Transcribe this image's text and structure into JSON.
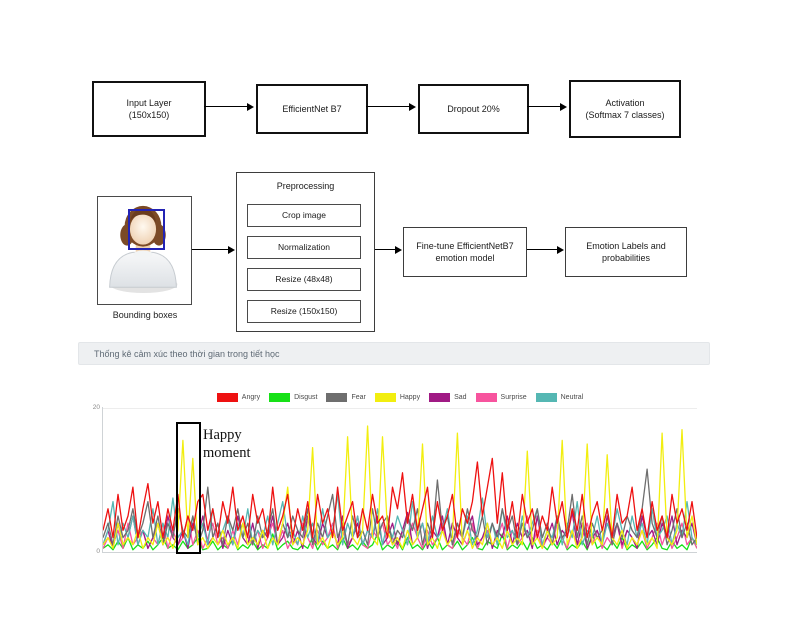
{
  "diagram": {
    "top_row": [
      {
        "lines": [
          "Input Layer",
          "(150x150)"
        ]
      },
      {
        "lines": [
          "EfficientNet B7",
          ""
        ]
      },
      {
        "lines": [
          "Dropout 20%",
          ""
        ]
      },
      {
        "lines": [
          "Activation",
          "(Softmax 7 classes)"
        ]
      }
    ],
    "bounding_box_label": "Bounding boxes",
    "preprocessing": {
      "title": "Preprocessing",
      "steps": [
        "Crop image",
        "Normalization",
        "Resize (48x48)",
        "Resize (150x150)"
      ]
    },
    "finetune_box": {
      "lines": [
        "Fine-tune EfficientNetB7",
        "emotion model"
      ]
    },
    "output_box": {
      "lines": [
        "Emotion Labels and",
        "probabilities"
      ]
    }
  },
  "section_header": {
    "label": "Thống kê cảm xúc theo thời gian trong tiết học",
    "background": "#eef0f2",
    "text_color": "#5f6a75"
  },
  "chart_data": {
    "type": "line",
    "title": "",
    "legend_position": "top",
    "xlabel": "",
    "ylabel": "",
    "ylim": [
      0,
      20
    ],
    "ytick_labels": [
      "20",
      "0"
    ],
    "grid": false,
    "annotation": {
      "label": "Happy moment"
    },
    "draw_order": [
      1,
      5,
      4,
      6,
      2,
      3,
      0
    ],
    "series": [
      {
        "name": "Angry",
        "color": "#ee1111",
        "values": [
          3,
          6,
          2,
          8,
          3,
          5,
          9,
          2,
          6,
          9.5,
          4,
          7,
          2,
          6,
          3,
          8,
          2,
          5,
          3,
          7,
          8,
          3,
          6,
          2,
          7,
          4,
          9,
          3,
          5,
          2,
          8,
          4,
          6,
          2,
          9,
          3,
          5,
          8,
          2,
          6,
          3,
          7,
          2,
          8,
          4,
          6,
          2,
          9,
          3,
          5,
          7,
          2,
          6,
          3,
          8,
          4,
          5,
          2,
          9,
          6,
          11,
          4,
          8,
          3,
          6,
          9,
          2,
          7,
          3,
          5,
          8,
          2,
          6,
          4,
          7,
          12.5,
          5,
          9,
          13,
          4,
          11,
          3,
          7,
          2,
          8,
          4,
          6,
          2,
          5,
          3,
          9,
          4,
          7,
          2,
          6,
          3,
          8,
          2,
          5,
          7,
          3,
          6,
          2,
          8,
          4,
          5,
          9,
          3,
          6,
          2,
          7,
          3,
          5,
          2,
          8,
          4,
          6,
          3,
          7,
          2
        ]
      },
      {
        "name": "Disgust",
        "color": "#17e117",
        "values": [
          0.5,
          1,
          0.3,
          1.5,
          0.5,
          2,
          0.3,
          1,
          0.5,
          1.5,
          0.3,
          1,
          2,
          0.5,
          1,
          0.3,
          1.5,
          0.5,
          1,
          2,
          0.3,
          0.5,
          1.5,
          0.3,
          1,
          0.5,
          2,
          0.3,
          1,
          0.5,
          1.5,
          0.3,
          1,
          0.5,
          2.5,
          0.3,
          1,
          1.5,
          0.5,
          0.3,
          1,
          0.5,
          2,
          0.3,
          1.5,
          0.5,
          1,
          0.3,
          2,
          0.5,
          1,
          0.3,
          1.5,
          0.5,
          1,
          2.5,
          0.3,
          1,
          0.5,
          1.5,
          0.3,
          2,
          0.5,
          1,
          0.3,
          1.5,
          0.5,
          2,
          0.3,
          1,
          0.5,
          1.5,
          0.3,
          1,
          2,
          0.5,
          0.3,
          1.5,
          1,
          0.5,
          2.5,
          0.3,
          1,
          0.5,
          1.5,
          0.3,
          2,
          0.5,
          1,
          0.3,
          1.5,
          0.5,
          2,
          0.3,
          1,
          0.5,
          1.5,
          0.3,
          2.5,
          0.5,
          1,
          0.3,
          1.5,
          0.5,
          2,
          0.3,
          1,
          0.5,
          1.5,
          0.3,
          1,
          2,
          0.5,
          0.3,
          1.5,
          0.5,
          1,
          0.3,
          2,
          0.5
        ]
      },
      {
        "name": "Fear",
        "color": "#6e6e6e",
        "values": [
          2,
          4,
          1,
          5,
          2,
          3,
          6,
          2,
          4,
          7,
          2,
          5,
          1,
          4,
          2,
          6,
          3,
          2,
          5,
          1,
          3,
          9,
          2,
          4,
          1,
          5,
          3,
          6,
          2,
          4,
          1,
          5,
          2,
          3,
          6,
          1,
          4,
          2,
          5,
          3,
          2,
          6,
          1,
          4,
          2,
          5,
          8,
          2,
          4,
          1,
          5,
          2,
          3,
          1,
          6,
          2,
          4,
          5,
          1,
          3,
          2,
          5,
          3,
          6,
          1,
          4,
          2,
          10,
          3,
          5,
          1,
          4,
          2,
          6,
          3,
          2,
          5,
          1,
          4,
          2,
          6,
          3,
          5,
          1,
          4,
          2,
          3,
          6,
          2,
          4,
          1,
          5,
          2,
          3,
          8,
          2,
          5,
          1,
          4,
          2,
          3,
          6,
          1,
          4,
          2,
          5,
          3,
          2,
          6,
          11.5,
          4,
          2,
          5,
          1,
          3,
          6,
          2,
          4,
          1,
          2
        ]
      },
      {
        "name": "Happy",
        "color": "#f2ee0f",
        "values": [
          1,
          2,
          0.5,
          4,
          1,
          2,
          1,
          3,
          0.5,
          2,
          1,
          4,
          1,
          2,
          0.5,
          3,
          15.5,
          2,
          13,
          1,
          2,
          0.5,
          2,
          1,
          3,
          1,
          2,
          0.5,
          4,
          1,
          2,
          1,
          3,
          0.5,
          2,
          1,
          4,
          9,
          1,
          2,
          1,
          3,
          14.5,
          1,
          2,
          0.5,
          3,
          1,
          2,
          16,
          2,
          1,
          3,
          17.5,
          2,
          1,
          16,
          3,
          1,
          2,
          0.5,
          3,
          1,
          2,
          15,
          1,
          2,
          0.5,
          3,
          1,
          2,
          16.5,
          1,
          3,
          0.5,
          2,
          1,
          4,
          1,
          2,
          0.5,
          3,
          1,
          2,
          1,
          14,
          1,
          2,
          0.5,
          3,
          1,
          2,
          15.5,
          1,
          3,
          0.5,
          2,
          15,
          1,
          2,
          1,
          13.5,
          2,
          1,
          3,
          0.5,
          2,
          1,
          3,
          1,
          2,
          0.5,
          16.5,
          2,
          1,
          3,
          17,
          2,
          5,
          1
        ]
      },
      {
        "name": "Sad",
        "color": "#a01a84",
        "values": [
          1,
          3,
          0.5,
          4,
          1,
          2,
          5,
          1,
          3,
          0.5,
          2,
          4,
          1,
          5,
          2,
          1,
          3,
          0.5,
          4,
          2,
          5,
          1,
          2,
          4,
          0.5,
          3,
          1,
          5,
          2,
          1,
          4,
          0.5,
          3,
          2,
          5,
          1,
          2,
          4,
          1,
          3,
          0.5,
          5,
          2,
          1,
          4,
          2,
          3,
          1,
          5,
          0.5,
          2,
          4,
          1,
          3,
          2,
          5,
          1,
          2,
          4,
          1,
          3,
          5.5,
          1,
          2,
          4,
          0.5,
          3,
          2,
          5,
          1,
          4,
          2,
          1,
          3,
          5,
          1,
          2,
          4,
          0.5,
          3,
          2,
          5,
          1,
          4,
          2,
          3,
          0.5,
          5,
          1,
          2,
          4,
          1,
          3,
          2,
          5.5,
          1,
          4,
          0.5,
          2,
          3,
          1,
          5,
          2,
          4,
          1,
          3,
          2,
          0.5,
          5,
          2,
          3,
          1,
          4,
          2,
          5,
          1,
          3,
          2,
          4,
          1
        ]
      },
      {
        "name": "Surprise",
        "color": "#f7549e",
        "values": [
          0.5,
          2,
          1,
          3,
          0.5,
          4,
          1,
          2,
          3,
          0.5,
          2,
          1,
          4,
          0.5,
          3,
          1,
          2,
          5,
          1,
          3,
          0.5,
          2,
          4,
          1,
          2,
          0.5,
          3,
          1,
          4,
          2,
          1,
          3,
          0.5,
          2,
          4,
          1,
          3,
          0.5,
          2,
          1,
          4,
          2,
          0.5,
          3,
          1,
          2,
          4,
          0.5,
          3,
          1,
          2,
          5,
          1,
          0.5,
          3,
          2,
          4,
          1,
          2,
          0.5,
          3,
          1,
          4,
          2,
          0.5,
          3,
          1,
          2,
          4,
          1,
          0.5,
          3,
          2,
          1,
          4,
          0.5,
          2,
          3,
          1,
          2,
          4,
          0.5,
          3,
          1,
          2,
          5,
          1,
          3,
          0.5,
          2,
          1,
          4,
          2,
          0.5,
          3,
          1,
          2,
          4,
          1,
          3,
          0.5,
          2,
          1,
          4,
          0.5,
          3,
          2,
          1,
          3,
          0.5,
          2,
          4,
          1,
          3,
          0.5,
          2,
          4,
          1,
          2,
          0.5
        ]
      },
      {
        "name": "Neutral",
        "color": "#55b7b3",
        "values": [
          1,
          3,
          7,
          1,
          4,
          2,
          5,
          1,
          3,
          2,
          6,
          1,
          4,
          2,
          7.5,
          2,
          3,
          1,
          5,
          2,
          4,
          1,
          6,
          2,
          3,
          5,
          1,
          4,
          2,
          6,
          1,
          3,
          2,
          5,
          1,
          4,
          7,
          2,
          3,
          1,
          5,
          2,
          4,
          1,
          6,
          2,
          3,
          8,
          1,
          4,
          2,
          5,
          1,
          3,
          2,
          6,
          1,
          4,
          2,
          5,
          3,
          1,
          7,
          2,
          4,
          1,
          5,
          2,
          3,
          6,
          1,
          4,
          2,
          5,
          1,
          3,
          7.5,
          2,
          4,
          1,
          6,
          2,
          3,
          1,
          5,
          2,
          4,
          6,
          1,
          3,
          2,
          5,
          1,
          4,
          2,
          7,
          1,
          3,
          2,
          5,
          1,
          4,
          2,
          6,
          3,
          1,
          5,
          2,
          4,
          1,
          6,
          2,
          3,
          5,
          1,
          4,
          2,
          7,
          2,
          1
        ]
      }
    ]
  }
}
